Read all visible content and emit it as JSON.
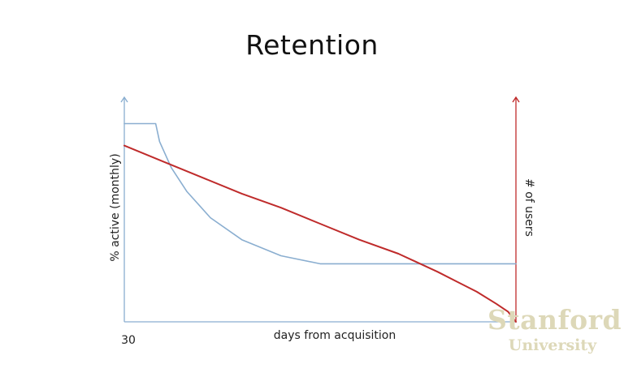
{
  "slide": {
    "title": "Retention"
  },
  "watermark": {
    "line1": "Stanford",
    "line2": "University"
  },
  "chart_data": {
    "type": "line",
    "title": "Retention",
    "xlabel": "days from acquisition",
    "ylabel_left": "% active (monthly)",
    "ylabel_right": "# of users",
    "x_tick_labels": [
      "30"
    ],
    "grid": false,
    "legend": "none",
    "x_range": [
      0,
      100
    ],
    "y_range": [
      0,
      100
    ],
    "series": [
      {
        "color": "#8aaed0",
        "axis": "left",
        "x": [
          0,
          8,
          9,
          12,
          16,
          22,
          30,
          40,
          50,
          60,
          70,
          80,
          90,
          100
        ],
        "y": [
          99,
          99,
          90,
          77,
          65,
          52,
          41,
          33,
          29,
          29,
          29,
          29,
          29,
          29
        ]
      },
      {
        "color": "#bf2b2b",
        "axis": "right",
        "x": [
          0,
          10,
          20,
          30,
          40,
          50,
          60,
          70,
          80,
          85,
          90,
          95,
          98,
          100
        ],
        "y": [
          88,
          80,
          72,
          64,
          57,
          49,
          41,
          34,
          25,
          20,
          15,
          9,
          5,
          0
        ]
      }
    ],
    "colors": {
      "left_axis": "#8aaed0",
      "right_axis": "#bf2b2b"
    }
  }
}
